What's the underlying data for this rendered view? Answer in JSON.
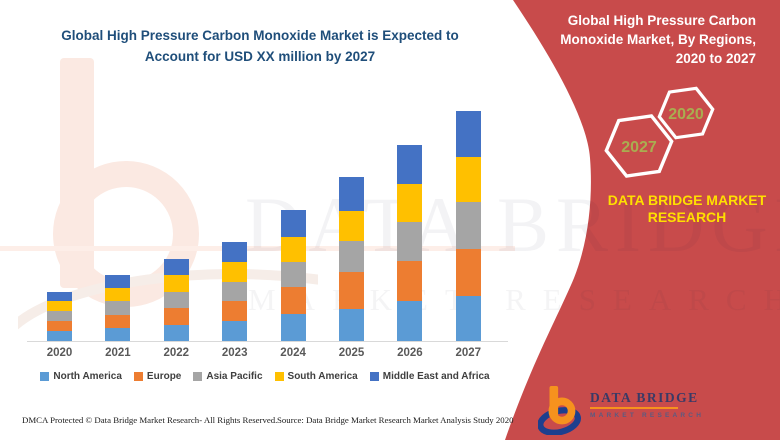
{
  "left_panel": {
    "title_lines": [
      "Global High Pressure Carbon Monoxide Market is Expected to",
      "Account for USD XX million by 2027"
    ]
  },
  "chart_data": {
    "type": "bar",
    "stacked": true,
    "title": "Global High Pressure Carbon Monoxide Market is Expected to Account for USD XX million by 2027",
    "xlabel": "",
    "ylabel": "",
    "value_note": "USD XX million (values not labeled; relative heights estimated)",
    "categories": [
      "2020",
      "2021",
      "2022",
      "2023",
      "2024",
      "2025",
      "2026",
      "2027"
    ],
    "series": [
      {
        "name": "North America",
        "color": "#5B9BD5",
        "values": [
          10,
          13,
          16,
          20,
          27,
          32,
          40,
          45
        ]
      },
      {
        "name": "Europe",
        "color": "#ED7D31",
        "values": [
          10,
          13,
          17,
          20,
          27,
          37,
          40,
          47
        ]
      },
      {
        "name": "Asia Pacific",
        "color": "#A5A5A5",
        "values": [
          10,
          14,
          16,
          19,
          25,
          31,
          39,
          47
        ]
      },
      {
        "name": "South America",
        "color": "#FFC000",
        "values": [
          10,
          13,
          17,
          20,
          25,
          30,
          38,
          45
        ]
      },
      {
        "name": "Middle East and Africa",
        "color": "#4472C4",
        "values": [
          9,
          13,
          16,
          20,
          27,
          34,
          39,
          46
        ]
      }
    ],
    "totals": [
      49,
      66,
      82,
      99,
      131,
      164,
      196,
      230
    ],
    "ylim": [
      0,
      240
    ],
    "gridlines": false,
    "legend_position": "bottom"
  },
  "right_panel": {
    "title_lines": [
      "Global High Pressure Carbon",
      "Monoxide Market, By Regions,",
      "2020 to 2027"
    ],
    "hexagons": [
      {
        "label": "2027"
      },
      {
        "label": "2020"
      }
    ],
    "brand_lines": [
      "DATA BRIDGE MARKET",
      "RESEARCH"
    ],
    "colors": {
      "panel_red": "#C84B4B",
      "brand_text_yellow": "#FFDF00",
      "hex_year_olive": "#A9AD50",
      "title_white": "#FFFFFF"
    }
  },
  "footer": {
    "dmca": "DMCA Protected © Data Bridge Market Research- All Rights Reserved.",
    "source": "Source: Data Bridge Market Research Market Analysis Study 2020"
  },
  "logo": {
    "name": "DATA BRIDGE",
    "tagline": "MARKET RESEARCH",
    "colors": {
      "monogram_orange": "#F6921E",
      "monogram_blue": "#1D3F8E",
      "name_navy": "#3A3A66"
    }
  },
  "watermark": {
    "line1": "DATA BRIDGE",
    "line2": "MARKET RESEARCH"
  }
}
